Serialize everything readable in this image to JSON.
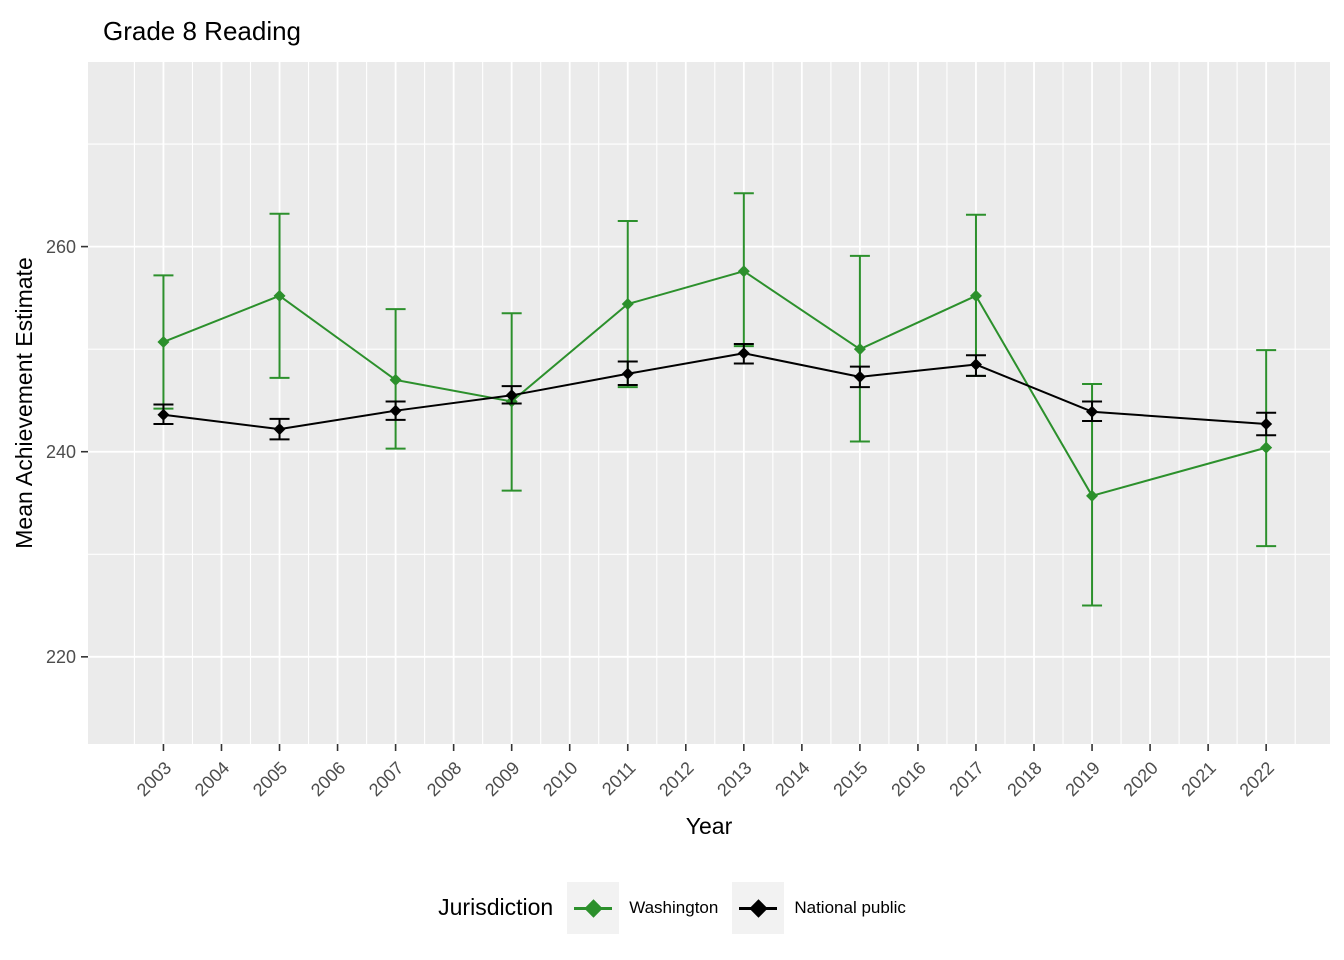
{
  "title": "Grade 8 Reading",
  "x_axis": {
    "label": "Year"
  },
  "y_axis": {
    "label": "Mean Achievement Estimate"
  },
  "legend": {
    "title": "Jurisdiction",
    "entries": [
      {
        "label": "Washington",
        "color": "#2c902c"
      },
      {
        "label": "National public",
        "color": "#000000"
      }
    ]
  },
  "colors": {
    "panel_background": "#ebebeb",
    "gridline": "#ffffff",
    "tick_mark": "#333333",
    "tick_label": "#4d4d4d",
    "axis_title": "#000000",
    "title": "#000000",
    "legend_key_background": "#f2f2f2",
    "washington_green": "#2c902c",
    "national_black": "#000000"
  },
  "chart_data": {
    "type": "line",
    "title": "Grade 8 Reading",
    "xlabel": "Year",
    "ylabel": "Mean Achievement Estimate",
    "x": [
      2003,
      2005,
      2007,
      2009,
      2011,
      2013,
      2015,
      2017,
      2019,
      2022
    ],
    "x_ticks": [
      2003,
      2004,
      2005,
      2006,
      2007,
      2008,
      2009,
      2010,
      2011,
      2012,
      2013,
      2014,
      2015,
      2016,
      2017,
      2018,
      2019,
      2020,
      2021,
      2022
    ],
    "y_ticks": [
      220,
      240,
      260
    ],
    "y_minor_ticks": [
      230,
      250,
      270
    ],
    "xlim": [
      2001.7,
      2023.1
    ],
    "ylim": [
      211.5,
      278.0
    ],
    "grid": true,
    "error_bars": true,
    "point_shape": "diamond",
    "legend_position": "bottom",
    "series": [
      {
        "name": "Washington",
        "color": "#2c902c",
        "values": [
          250.7,
          255.2,
          247.0,
          244.9,
          254.4,
          257.6,
          250.0,
          255.2,
          235.7,
          240.4
        ],
        "ymin": [
          244.2,
          247.2,
          240.3,
          236.2,
          246.3,
          250.3,
          241.0,
          247.4,
          225.0,
          230.8
        ],
        "ymax": [
          257.2,
          263.2,
          253.9,
          253.5,
          262.5,
          265.2,
          259.1,
          263.1,
          246.6,
          249.9
        ]
      },
      {
        "name": "National public",
        "color": "#000000",
        "values": [
          243.6,
          242.2,
          244.0,
          245.5,
          247.6,
          249.6,
          247.3,
          248.5,
          243.9,
          242.7
        ],
        "ymin": [
          242.7,
          241.2,
          243.1,
          244.7,
          246.5,
          248.6,
          246.3,
          247.4,
          243.0,
          241.6
        ],
        "ymax": [
          244.6,
          243.2,
          244.9,
          246.4,
          248.8,
          250.5,
          248.3,
          249.4,
          244.9,
          243.8
        ]
      }
    ]
  }
}
